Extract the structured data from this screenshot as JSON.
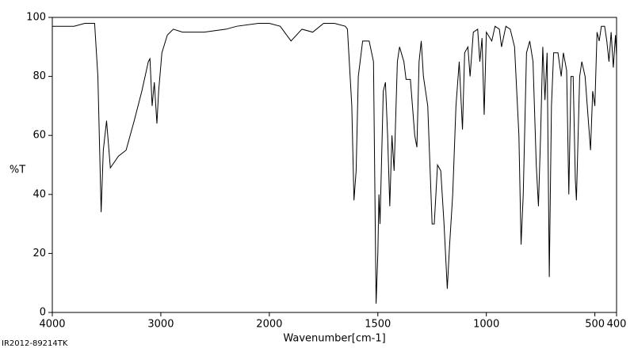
{
  "chart_data": {
    "type": "line",
    "x_label": "Wavenumber[cm-1]",
    "y_label": "%T",
    "footer": "IR2012-89214TK",
    "xlim": [
      4000,
      400
    ],
    "x_scale": {
      "break": 2000,
      "ratio": 2
    },
    "xticks": [
      4000,
      3000,
      2000,
      1500,
      1000,
      500,
      400
    ],
    "ylim": [
      0,
      100
    ],
    "yticks": [
      0,
      20,
      40,
      60,
      80,
      100
    ],
    "color": "#000000",
    "x": [
      4000,
      3800,
      3700,
      3610,
      3580,
      3550,
      3530,
      3500,
      3465,
      3390,
      3320,
      3245,
      3175,
      3115,
      3100,
      3080,
      3060,
      3036,
      3020,
      2990,
      2940,
      2885,
      2800,
      2600,
      2400,
      2300,
      2100,
      2000,
      1950,
      1900,
      1850,
      1800,
      1750,
      1700,
      1650,
      1640,
      1620,
      1610,
      1600,
      1590,
      1570,
      1540,
      1520,
      1512,
      1508,
      1500,
      1495,
      1490,
      1475,
      1465,
      1455,
      1445,
      1435,
      1425,
      1410,
      1400,
      1380,
      1370,
      1350,
      1330,
      1320,
      1310,
      1300,
      1290,
      1270,
      1250,
      1240,
      1225,
      1210,
      1195,
      1180,
      1170,
      1155,
      1140,
      1125,
      1110,
      1100,
      1085,
      1075,
      1060,
      1040,
      1030,
      1020,
      1010,
      1000,
      975,
      960,
      940,
      930,
      910,
      890,
      870,
      850,
      840,
      830,
      815,
      800,
      785,
      770,
      760,
      750,
      740,
      730,
      720,
      710,
      700,
      690,
      670,
      655,
      645,
      630,
      620,
      610,
      600,
      590,
      585,
      570,
      560,
      545,
      530,
      520,
      510,
      500,
      490,
      480,
      470,
      455,
      445,
      435,
      425,
      415,
      405,
      400
    ],
    "values": [
      97,
      97,
      98,
      98,
      80,
      34,
      55,
      65,
      49,
      53,
      55,
      65,
      75,
      85,
      86,
      70,
      78,
      64,
      75,
      88,
      94,
      96,
      95,
      95,
      96,
      97,
      98,
      98,
      97,
      92,
      96,
      95,
      98,
      98,
      97,
      96,
      70,
      38,
      48,
      80,
      92,
      92,
      85,
      30,
      3,
      20,
      40,
      30,
      75,
      78,
      60,
      36,
      60,
      48,
      85,
      90,
      85,
      79,
      79,
      60,
      56,
      85,
      92,
      80,
      70,
      30,
      30,
      50,
      48,
      30,
      8,
      22,
      40,
      70,
      85,
      62,
      88,
      90,
      80,
      95,
      96,
      85,
      93,
      67,
      95,
      92,
      97,
      96,
      90,
      97,
      96,
      90,
      60,
      23,
      40,
      88,
      92,
      85,
      50,
      36,
      60,
      90,
      72,
      88,
      12,
      70,
      88,
      88,
      80,
      88,
      82,
      40,
      80,
      80,
      45,
      38,
      80,
      85,
      80,
      65,
      55,
      75,
      70,
      95,
      92,
      97,
      97,
      92,
      85,
      95,
      83,
      94,
      87
    ]
  }
}
